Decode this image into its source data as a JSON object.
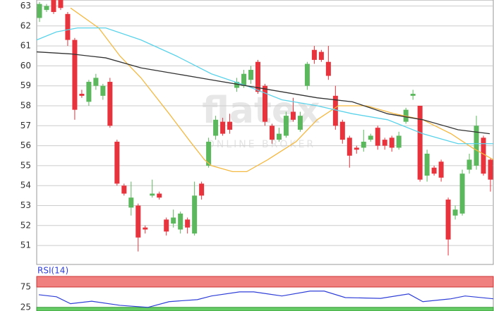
{
  "chart_data": [
    {
      "type": "candlestick",
      "watermark": "flatex",
      "watermark_sub": "ONLINE BROKER",
      "open": [
        62.4,
        62.8,
        63.3,
        63.3,
        62.6,
        61.3,
        58.6,
        58.2,
        59.0,
        58.5,
        59.2,
        56.2,
        54.0,
        52.9,
        53.0,
        51.9,
        53.5,
        53.6,
        52.3,
        52.1,
        51.8,
        52.3,
        51.6,
        54.1,
        55.0,
        56.5,
        57.2,
        57.2,
        58.9,
        59.0,
        59.3,
        60.2,
        59.0,
        57.0,
        56.3,
        56.5,
        57.7,
        56.8,
        59.0,
        60.8,
        60.7,
        60.2,
        58.5,
        57.2,
        56.4,
        55.9,
        55.9,
        56.3,
        56.9,
        56.3,
        56.4,
        55.9,
        57.2,
        58.5,
        58.0,
        54.5,
        54.9,
        55.2,
        53.3,
        52.5,
        52.6,
        54.8,
        55.0,
        56.4,
        55.3
      ],
      "high": [
        63.2,
        63.1,
        63.4,
        63.4,
        62.7,
        61.4,
        58.8,
        59.3,
        59.6,
        59.1,
        59.4,
        56.3,
        54.1,
        54.2,
        53.1,
        52.0,
        54.3,
        53.7,
        52.4,
        52.8,
        52.7,
        52.4,
        54.2,
        54.2,
        56.4,
        57.5,
        57.4,
        57.6,
        59.4,
        59.8,
        60.0,
        60.3,
        59.1,
        57.1,
        56.9,
        57.7,
        58.4,
        57.7,
        60.2,
        61.0,
        60.8,
        61.0,
        59.0,
        57.3,
        56.5,
        56.0,
        56.8,
        56.6,
        57.0,
        56.4,
        56.5,
        56.7,
        57.9,
        58.8,
        58.0,
        55.8,
        55.0,
        55.3,
        53.4,
        53.0,
        54.8,
        55.6,
        57.5,
        56.5,
        55.4
      ],
      "low": [
        62.2,
        62.7,
        62.6,
        62.8,
        61.0,
        57.3,
        58.4,
        58.0,
        58.8,
        58.3,
        56.9,
        54.0,
        53.5,
        52.5,
        50.7,
        51.6,
        53.4,
        53.3,
        51.5,
        51.9,
        51.6,
        51.6,
        51.5,
        53.3,
        54.9,
        56.3,
        56.5,
        56.6,
        58.7,
        58.9,
        59.1,
        58.6,
        57.0,
        56.1,
        56.2,
        56.4,
        57.2,
        56.7,
        58.8,
        60.1,
        60.2,
        59.3,
        56.8,
        56.1,
        54.9,
        55.6,
        55.7,
        56.2,
        55.8,
        55.8,
        55.7,
        55.8,
        57.1,
        58.3,
        54.2,
        54.2,
        54.5,
        54.2,
        50.5,
        52.3,
        52.5,
        54.6,
        54.8,
        54.5,
        53.7
      ],
      "close": [
        63.1,
        63.0,
        62.7,
        62.9,
        61.3,
        57.8,
        58.5,
        59.2,
        59.4,
        59.0,
        57.0,
        54.1,
        53.6,
        53.4,
        51.4,
        51.8,
        53.6,
        53.4,
        51.7,
        52.4,
        52.6,
        51.9,
        53.5,
        53.5,
        56.2,
        57.3,
        56.6,
        56.8,
        59.2,
        59.6,
        59.8,
        58.7,
        57.2,
        56.3,
        56.6,
        57.5,
        57.3,
        57.5,
        60.1,
        60.3,
        60.3,
        59.5,
        57.0,
        56.3,
        55.5,
        55.8,
        56.2,
        56.5,
        56.0,
        56.0,
        55.9,
        56.5,
        57.8,
        58.6,
        54.3,
        55.6,
        54.6,
        54.4,
        51.3,
        52.8,
        54.6,
        55.3,
        57.0,
        54.6,
        54.3
      ],
      "up_color": "#5cb85c",
      "down_color": "#e8323c",
      "lines": [
        {
          "color": "#f5b942",
          "x": [
            4.4,
            8.4,
            11.4,
            14.4,
            18.4,
            21.4,
            23.4,
            24.4,
            27.4,
            29.4,
            32.4,
            36.4,
            39.4,
            42.4,
            46.4,
            50.4,
            54.4,
            58.4,
            61.4,
            64.4
          ],
          "values": [
            62.9,
            61.9,
            60.5,
            59.4,
            57.6,
            56.2,
            55.3,
            55.0,
            54.7,
            54.7,
            55.3,
            56.2,
            57.3,
            58.0,
            58.0,
            57.6,
            57.3,
            56.6,
            55.9,
            55.3
          ]
        },
        {
          "color": "#5bd3ea",
          "x": [
            -0.4,
            2.4,
            5.4,
            9.4,
            14.4,
            19.4,
            24.4,
            29.4,
            34.4,
            39.4,
            44.4,
            49.4,
            54.4,
            59.4,
            64.4
          ],
          "values": [
            61.3,
            61.7,
            61.9,
            61.9,
            61.3,
            60.5,
            59.6,
            59.0,
            58.3,
            58.0,
            57.6,
            57.3,
            56.6,
            56.1,
            56.1
          ]
        },
        {
          "color": "#333333",
          "x": [
            -0.4,
            4.4,
            9.4,
            14.4,
            19.4,
            24.4,
            29.4,
            34.4,
            39.4,
            44.4,
            49.4,
            54.4,
            59.4,
            63.9
          ],
          "values": [
            60.7,
            60.6,
            60.4,
            59.9,
            59.6,
            59.3,
            59.0,
            58.7,
            58.4,
            58.2,
            57.6,
            57.3,
            56.8,
            56.6
          ]
        }
      ],
      "xlim": [
        -0.4,
        64.4
      ],
      "ylim": [
        50.05,
        63.3
      ],
      "yticks": [
        51,
        52,
        53,
        54,
        55,
        56,
        57,
        58,
        59,
        60,
        61,
        62,
        63
      ],
      "grid": true
    },
    {
      "type": "line",
      "title": "RSI(14)",
      "series": [
        {
          "color": "#2f3fd8",
          "x": [
            -0.1,
            2.4,
            4.4,
            7.4,
            11.4,
            15.4,
            18.4,
            22.4,
            24.4,
            28.4,
            30.4,
            34.4,
            38.4,
            40.4,
            43.4,
            48.4,
            52.4,
            54.4,
            58.4,
            60.4,
            64.4
          ],
          "values": [
            56,
            51,
            34,
            40,
            30,
            25,
            39,
            44,
            53,
            63,
            63,
            53,
            65,
            65,
            49,
            47,
            58,
            39,
            46,
            53,
            46
          ]
        }
      ],
      "xlim": [
        -0.4,
        64.4
      ],
      "ylim": [
        16,
        101
      ],
      "yticks": [
        25,
        75
      ],
      "upper_band_color": "#f08080",
      "lower_band_color": "#66cc66"
    }
  ]
}
